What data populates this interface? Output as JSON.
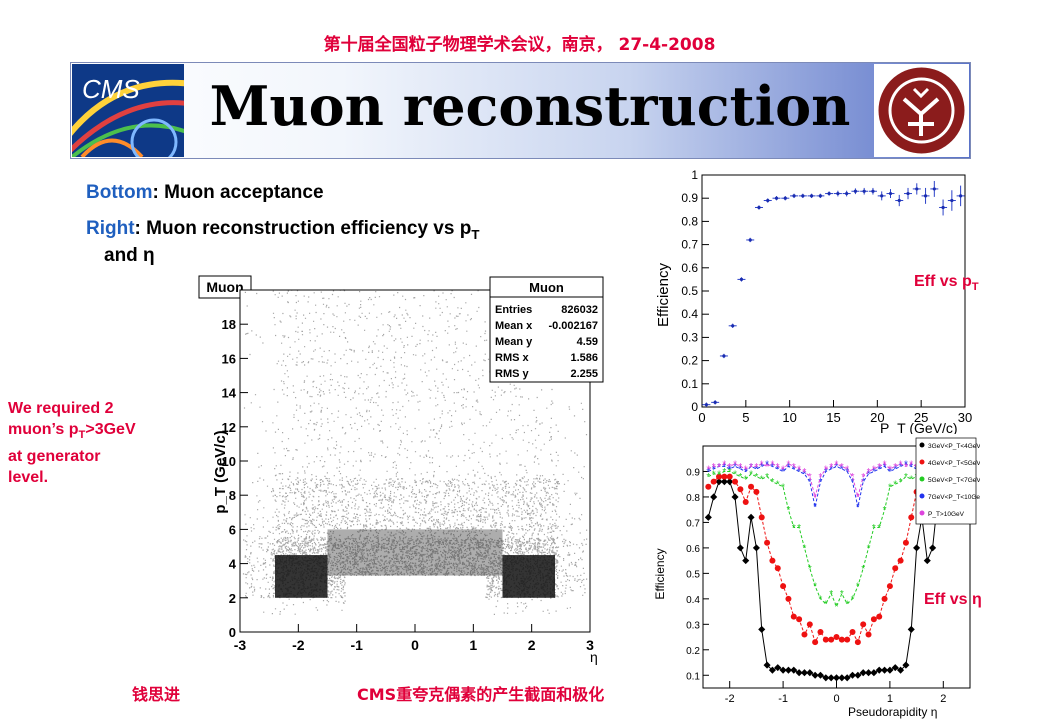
{
  "header": {
    "conference": "第十届全国粒子物理学术会议，南京， 27-4-2008",
    "title": "Muon reconstruction",
    "logo_left": "CMS"
  },
  "text": {
    "bottom_label": "Bottom",
    "bottom_text": ": Muon acceptance",
    "right_label": "Right",
    "right_text": ":    Muon reconstruction efficiency vs p",
    "right_sub": "T",
    "right_cont": "and η",
    "requirement": [
      "We required 2",
      "muon’s p",
      "T",
      ">3GeV",
      "at generator",
      "level."
    ],
    "eff_pt_label": "Eff vs p",
    "eff_pt_sub": "T",
    "eff_eta_label": "Eff vs  η"
  },
  "footer": {
    "author": "钱思进",
    "talk": "CMS重夸克偶素的产生截面和极化"
  },
  "chart_data": [
    {
      "type": "heatmap",
      "title": "Muon",
      "xlabel": "η",
      "ylabel": "p_T (GeV/c)",
      "xlim": [
        -3,
        3
      ],
      "ylim": [
        0,
        20
      ],
      "x_ticks": [
        -3,
        -2,
        -1,
        0,
        1,
        2,
        3
      ],
      "y_ticks": [
        0,
        2,
        4,
        6,
        8,
        10,
        12,
        14,
        16,
        18
      ],
      "stats": {
        "name": "Muon",
        "rows": [
          {
            "k": "Entries",
            "v": "826032"
          },
          {
            "k": "Mean x",
            "v": "-0.002167"
          },
          {
            "k": "Mean y",
            "v": "4.59"
          },
          {
            "k": "RMS x",
            "v": "1.586"
          },
          {
            "k": "RMS y",
            "v": "2.255"
          }
        ]
      }
    },
    {
      "type": "scatter",
      "xlabel": "P_T (GeV/c)",
      "ylabel": "Efficiency",
      "xlim": [
        0,
        30
      ],
      "ylim": [
        0,
        1
      ],
      "x_ticks": [
        0,
        5,
        10,
        15,
        20,
        25,
        30
      ],
      "y_ticks": [
        0,
        0.1,
        0.2,
        0.3,
        0.4,
        0.5,
        0.6,
        0.7,
        0.8,
        0.9,
        1
      ],
      "x": [
        0.5,
        1.5,
        2.5,
        3.5,
        4.5,
        5.5,
        6.5,
        7.5,
        8.5,
        9.5,
        10.5,
        11.5,
        12.5,
        13.5,
        14.5,
        15.5,
        16.5,
        17.5,
        18.5,
        19.5,
        20.5,
        21.5,
        22.5,
        23.5,
        24.5,
        25.5,
        26.5,
        27.5,
        28.5,
        29.5
      ],
      "y": [
        0.01,
        0.02,
        0.22,
        0.35,
        0.55,
        0.72,
        0.86,
        0.89,
        0.9,
        0.9,
        0.91,
        0.91,
        0.91,
        0.91,
        0.92,
        0.92,
        0.92,
        0.93,
        0.93,
        0.93,
        0.91,
        0.92,
        0.89,
        0.92,
        0.94,
        0.91,
        0.94,
        0.86,
        0.89,
        0.91
      ],
      "yerr": [
        0.005,
        0.005,
        0.005,
        0.005,
        0.005,
        0.005,
        0.005,
        0.005,
        0.005,
        0.005,
        0.005,
        0.005,
        0.005,
        0.005,
        0.005,
        0.008,
        0.008,
        0.008,
        0.01,
        0.01,
        0.015,
        0.015,
        0.02,
        0.02,
        0.02,
        0.03,
        0.03,
        0.03,
        0.04,
        0.04
      ]
    },
    {
      "type": "line",
      "xlabel": "Pseudorapidity η",
      "ylabel": "Efficiency",
      "xlim": [
        -2.5,
        2.5
      ],
      "ylim": [
        0.05,
        1.0
      ],
      "x_ticks": [
        -2,
        -1,
        0,
        1,
        2
      ],
      "y_ticks": [
        0.1,
        0.2,
        0.3,
        0.4,
        0.5,
        0.6,
        0.7,
        0.8,
        0.9
      ],
      "x": [
        -2.4,
        -2.3,
        -2.2,
        -2.1,
        -2.0,
        -1.9,
        -1.8,
        -1.7,
        -1.6,
        -1.5,
        -1.4,
        -1.3,
        -1.2,
        -1.1,
        -1.0,
        -0.9,
        -0.8,
        -0.7,
        -0.6,
        -0.5,
        -0.4,
        -0.3,
        -0.2,
        -0.1,
        0.0,
        0.1,
        0.2,
        0.3,
        0.4,
        0.5,
        0.6,
        0.7,
        0.8,
        0.9,
        1.0,
        1.1,
        1.2,
        1.3,
        1.4,
        1.5,
        1.6,
        1.7,
        1.8,
        1.9,
        2.0,
        2.1,
        2.2,
        2.3,
        2.4
      ],
      "series": [
        {
          "name": "3GeV<P_T<4GeV",
          "color": "#000000",
          "values": [
            0.72,
            0.8,
            0.86,
            0.86,
            0.86,
            0.8,
            0.6,
            0.55,
            0.72,
            0.6,
            0.28,
            0.14,
            0.12,
            0.13,
            0.12,
            0.12,
            0.12,
            0.11,
            0.11,
            0.11,
            0.1,
            0.1,
            0.09,
            0.09,
            0.09,
            0.09,
            0.09,
            0.1,
            0.1,
            0.11,
            0.11,
            0.11,
            0.12,
            0.12,
            0.12,
            0.13,
            0.12,
            0.14,
            0.28,
            0.6,
            0.72,
            0.55,
            0.6,
            0.8,
            0.86,
            0.86,
            0.86,
            0.8,
            0.72
          ]
        },
        {
          "name": "4GeV<P_T<5GeV",
          "color": "#ee1111",
          "values": [
            0.84,
            0.86,
            0.88,
            0.88,
            0.88,
            0.86,
            0.83,
            0.78,
            0.84,
            0.82,
            0.72,
            0.62,
            0.55,
            0.52,
            0.45,
            0.4,
            0.33,
            0.32,
            0.26,
            0.3,
            0.23,
            0.27,
            0.24,
            0.24,
            0.25,
            0.24,
            0.24,
            0.27,
            0.23,
            0.3,
            0.26,
            0.32,
            0.33,
            0.4,
            0.45,
            0.52,
            0.55,
            0.62,
            0.72,
            0.82,
            0.84,
            0.78,
            0.83,
            0.86,
            0.88,
            0.88,
            0.88,
            0.86,
            0.84
          ]
        },
        {
          "name": "5GeV<P_T<7GeV",
          "color": "#22cc22",
          "values": [
            0.88,
            0.89,
            0.89,
            0.9,
            0.9,
            0.89,
            0.88,
            0.87,
            0.89,
            0.88,
            0.87,
            0.88,
            0.86,
            0.85,
            0.84,
            0.75,
            0.68,
            0.68,
            0.6,
            0.52,
            0.45,
            0.4,
            0.38,
            0.42,
            0.37,
            0.42,
            0.38,
            0.4,
            0.45,
            0.52,
            0.6,
            0.68,
            0.68,
            0.75,
            0.84,
            0.85,
            0.86,
            0.88,
            0.87,
            0.88,
            0.89,
            0.87,
            0.88,
            0.89,
            0.9,
            0.9,
            0.89,
            0.89,
            0.88
          ]
        },
        {
          "name": "7GeV<P_T<10GeV",
          "color": "#2233ee",
          "values": [
            0.9,
            0.91,
            0.92,
            0.92,
            0.91,
            0.92,
            0.91,
            0.9,
            0.92,
            0.91,
            0.92,
            0.93,
            0.92,
            0.91,
            0.9,
            0.92,
            0.91,
            0.9,
            0.89,
            0.86,
            0.76,
            0.86,
            0.9,
            0.91,
            0.92,
            0.91,
            0.9,
            0.86,
            0.76,
            0.86,
            0.89,
            0.9,
            0.91,
            0.92,
            0.9,
            0.91,
            0.92,
            0.93,
            0.92,
            0.91,
            0.92,
            0.9,
            0.91,
            0.92,
            0.91,
            0.92,
            0.92,
            0.91,
            0.9
          ]
        },
        {
          "name": "P_T>10GeV",
          "color": "#dd44dd",
          "values": [
            0.91,
            0.92,
            0.92,
            0.93,
            0.92,
            0.93,
            0.92,
            0.91,
            0.92,
            0.92,
            0.93,
            0.92,
            0.93,
            0.92,
            0.91,
            0.93,
            0.92,
            0.91,
            0.9,
            0.88,
            0.8,
            0.88,
            0.91,
            0.92,
            0.93,
            0.92,
            0.91,
            0.88,
            0.8,
            0.88,
            0.9,
            0.91,
            0.92,
            0.93,
            0.91,
            0.92,
            0.93,
            0.92,
            0.93,
            0.92,
            0.92,
            0.91,
            0.92,
            0.93,
            0.92,
            0.93,
            0.92,
            0.92,
            0.91
          ]
        }
      ]
    }
  ]
}
